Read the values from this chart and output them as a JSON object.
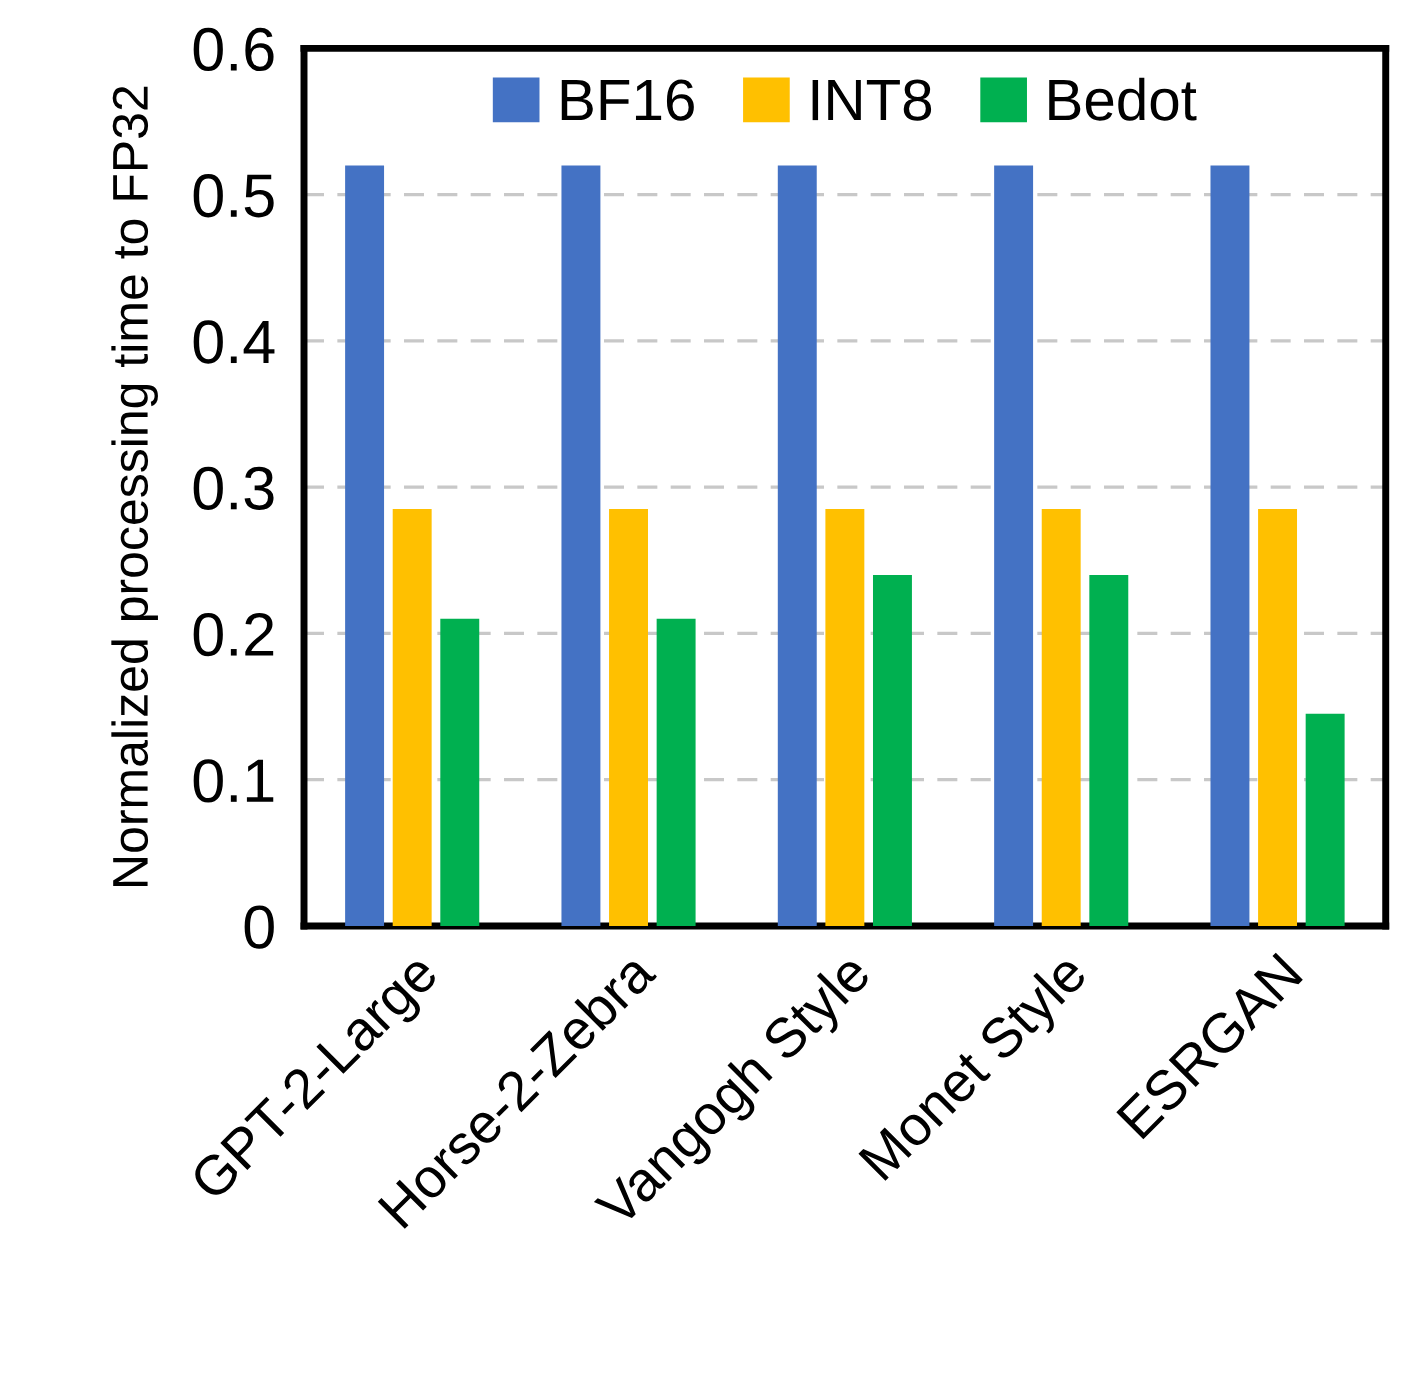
{
  "chart_data": {
    "type": "bar",
    "ylabel": "Normalized processing time to FP32",
    "categories": [
      "GPT-2-Large",
      "Horse-2-Zebra",
      "Vangogh Style",
      "Monet Style",
      "ESRGAN"
    ],
    "series": [
      {
        "name": "BF16",
        "color": "#4472c4",
        "values": [
          0.52,
          0.52,
          0.52,
          0.52,
          0.52
        ]
      },
      {
        "name": "INT8",
        "color": "#ffc000",
        "values": [
          0.285,
          0.285,
          0.285,
          0.285,
          0.285
        ]
      },
      {
        "name": "Bedot",
        "color": "#00b050",
        "values": [
          0.21,
          0.21,
          0.24,
          0.24,
          0.145
        ]
      }
    ],
    "ylim": [
      0,
      0.6
    ],
    "yticks": [
      {
        "value": 0,
        "label": "0"
      },
      0.1,
      0.2,
      0.3,
      0.4,
      0.5,
      0.6
    ],
    "grid": "y",
    "legend": "top"
  }
}
